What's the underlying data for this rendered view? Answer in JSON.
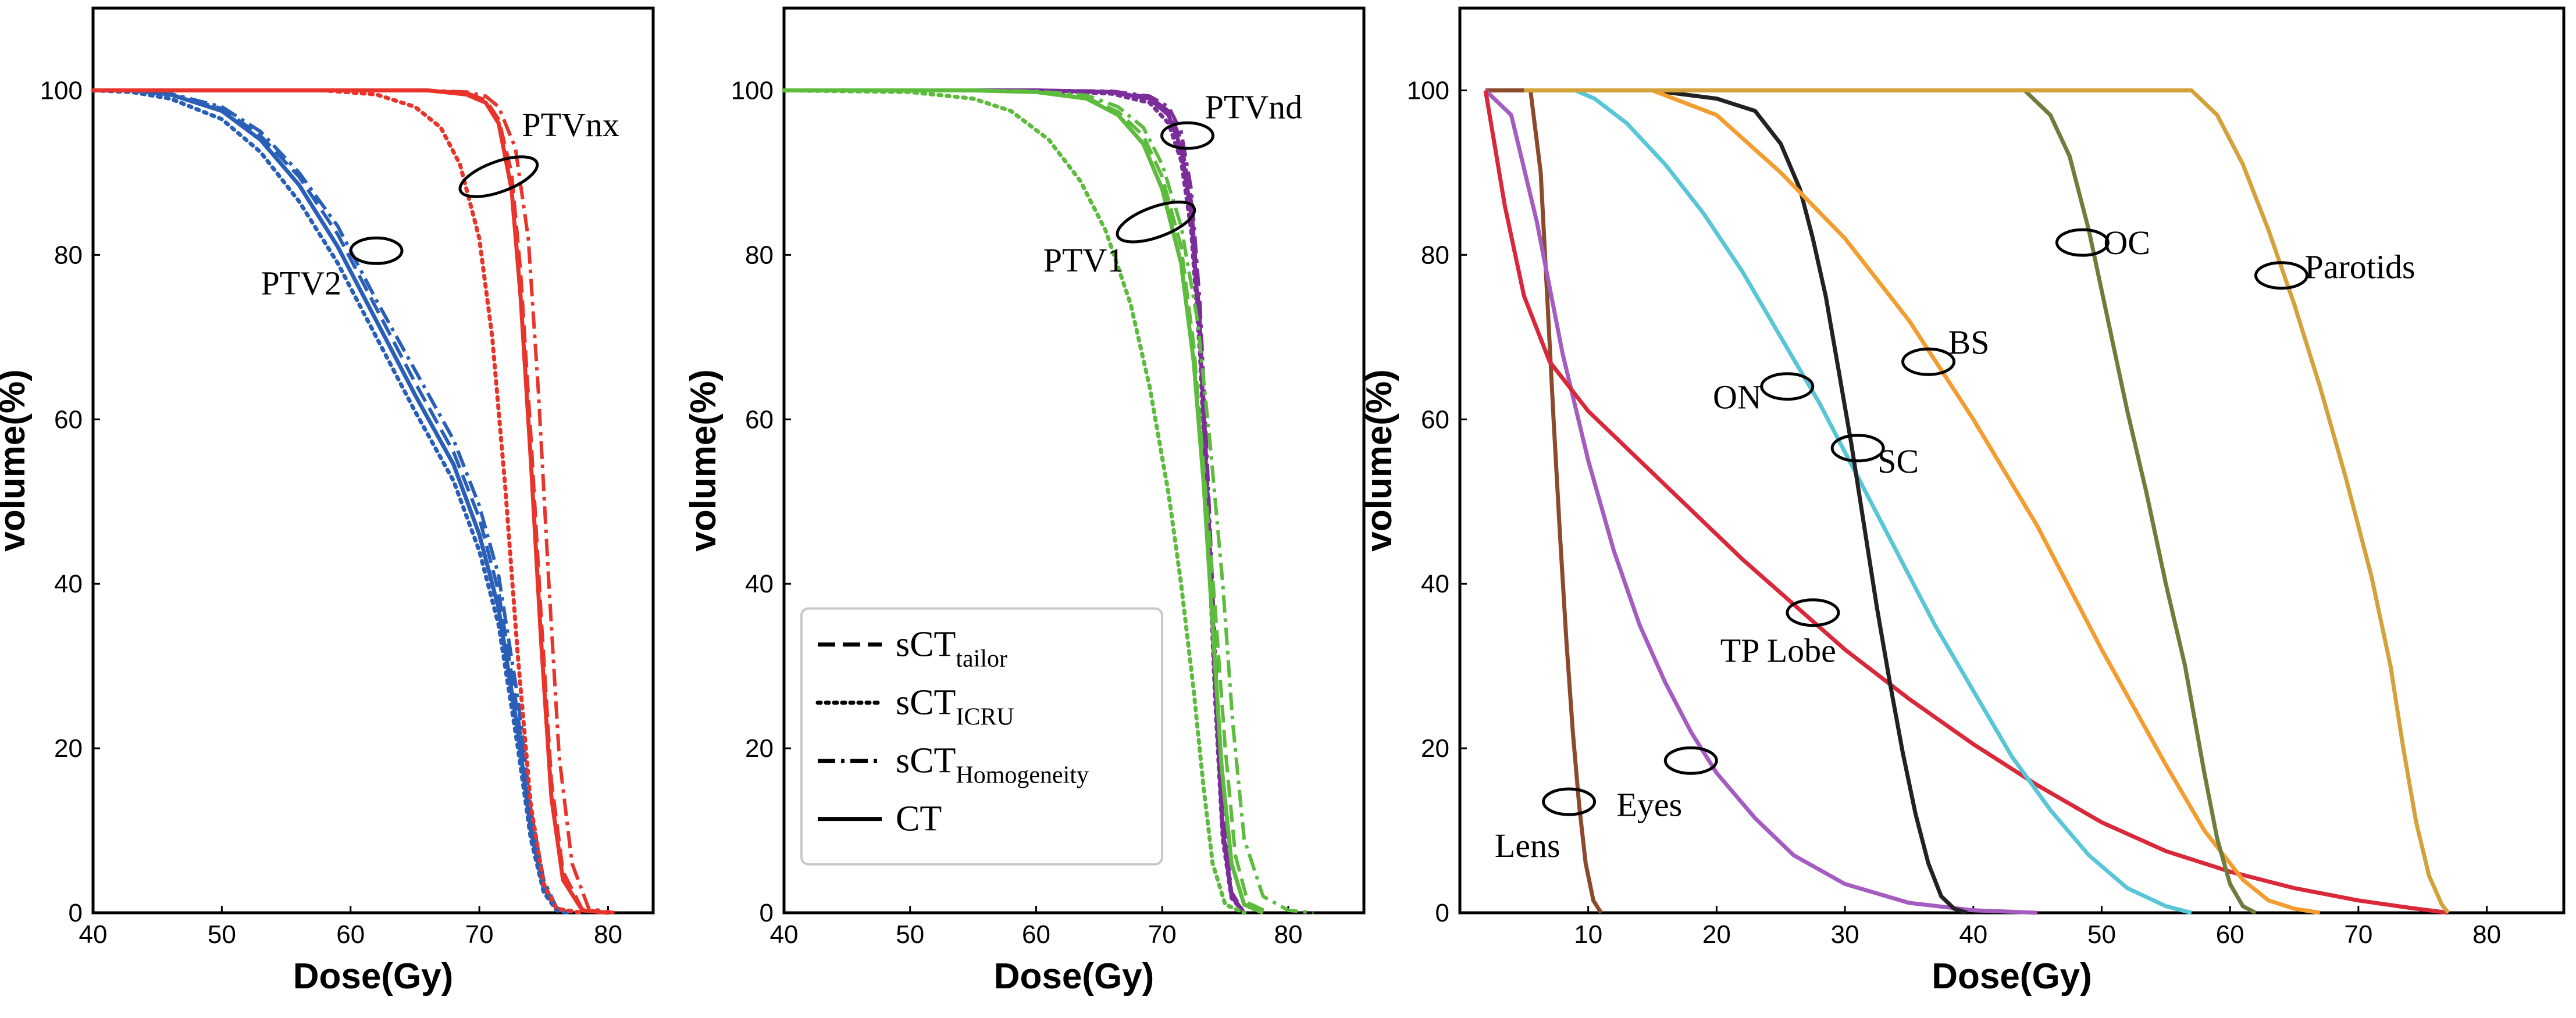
{
  "chart_data": [
    {
      "type": "line",
      "panel": "left",
      "xlabel": "Dose(Gy)",
      "ylabel": "volume(%)",
      "xlim": [
        40,
        83.5
      ],
      "ylim": [
        0,
        110
      ],
      "xticks": [
        40,
        50,
        60,
        70,
        80
      ],
      "yticks": [
        0,
        20,
        40,
        60,
        80,
        100
      ],
      "series": [
        {
          "name": "PTV2",
          "color": "#2a5fb8",
          "variant": "CT",
          "x": [
            40,
            43,
            46,
            50,
            53,
            56,
            59,
            62,
            65,
            68,
            70,
            71.5,
            73,
            74,
            75,
            76,
            77
          ],
          "y": [
            100,
            100,
            99.5,
            97.5,
            94,
            88.5,
            81,
            72,
            63,
            54.5,
            46,
            37,
            22,
            10,
            3,
            0.5,
            0
          ]
        },
        {
          "name": "PTV2",
          "color": "#2a5fb8",
          "variant": "sCT_tailor",
          "x": [
            40,
            43,
            46,
            50,
            53,
            56,
            59,
            62,
            65,
            68,
            70,
            71.5,
            73,
            74,
            75,
            76,
            77
          ],
          "y": [
            100,
            100,
            99.5,
            97.8,
            94.5,
            89.5,
            82.5,
            73.5,
            64.5,
            56,
            48,
            39,
            24,
            11,
            3.5,
            0.5,
            0
          ]
        },
        {
          "name": "PTV2",
          "color": "#2a5fb8",
          "variant": "sCT_ICRU",
          "x": [
            40,
            43,
            46,
            50,
            53,
            56,
            59,
            62,
            65,
            68,
            70,
            71.5,
            73,
            74,
            75,
            76,
            77
          ],
          "y": [
            100,
            99.8,
            99,
            96.5,
            92.5,
            86.5,
            79,
            70,
            61,
            52.5,
            44,
            35,
            20,
            9,
            2.5,
            0.3,
            0
          ]
        },
        {
          "name": "PTV2",
          "color": "#2a5fb8",
          "variant": "sCT_Homogeneity",
          "x": [
            40,
            43,
            46,
            50,
            53,
            56,
            59,
            62,
            65,
            68,
            70,
            71.5,
            73,
            74,
            75,
            76,
            77
          ],
          "y": [
            100,
            100,
            99.6,
            98,
            95,
            90,
            83.5,
            74.5,
            66,
            57.5,
            49.5,
            41,
            26,
            12.5,
            4,
            0.6,
            0
          ]
        },
        {
          "name": "PTVnx",
          "color": "#e8342b",
          "variant": "CT",
          "x": [
            40,
            60,
            66,
            69,
            70.5,
            71.5,
            72.5,
            73.2,
            74,
            74.8,
            75.6,
            76.5,
            78,
            80
          ],
          "y": [
            100,
            100,
            100,
            99.5,
            98.5,
            96,
            88,
            75,
            55,
            33,
            14,
            4,
            0.3,
            0
          ]
        },
        {
          "name": "PTVnx",
          "color": "#e8342b",
          "variant": "sCT_tailor",
          "x": [
            40,
            60,
            66,
            69,
            70.5,
            71.5,
            72.5,
            73.2,
            74,
            74.8,
            75.6,
            76.5,
            78,
            80
          ],
          "y": [
            100,
            100,
            100,
            99.7,
            98.8,
            96.5,
            90,
            78,
            58,
            36,
            16,
            5,
            0.4,
            0
          ]
        },
        {
          "name": "PTVnx",
          "color": "#e8342b",
          "variant": "sCT_ICRU",
          "x": [
            40,
            58,
            62,
            65,
            67,
            68.5,
            70,
            71,
            72,
            73,
            74,
            75,
            76,
            78
          ],
          "y": [
            100,
            100,
            99.5,
            98,
            95.5,
            91,
            82,
            70,
            52,
            31,
            13,
            3.5,
            0.5,
            0
          ]
        },
        {
          "name": "PTVnx",
          "color": "#e8342b",
          "variant": "sCT_Homogeneity",
          "x": [
            40,
            60,
            66,
            69,
            70.5,
            71.5,
            72.8,
            73.8,
            74.6,
            75.4,
            76.2,
            77.2,
            78.5,
            80.5
          ],
          "y": [
            100,
            100,
            100,
            99.8,
            99.3,
            98,
            93,
            82,
            63,
            40,
            19,
            6,
            0.5,
            0
          ]
        }
      ],
      "annotations": [
        {
          "text": "PTV2",
          "at": [
            62,
            80.5
          ]
        },
        {
          "text": "PTVnx",
          "at": [
            71.5,
            89.5
          ]
        }
      ]
    },
    {
      "type": "line",
      "panel": "middle",
      "xlabel": "Dose(Gy)",
      "ylabel": "volume(%)",
      "xlim": [
        40,
        86
      ],
      "ylim": [
        0,
        110
      ],
      "xticks": [
        40,
        50,
        60,
        70,
        80
      ],
      "yticks": [
        0,
        20,
        40,
        60,
        80,
        100
      ],
      "series": [
        {
          "name": "PTVnd",
          "color": "#7b2d9a",
          "variant": "CT",
          "x": [
            40,
            60,
            66,
            69,
            70.5,
            71.5,
            72.3,
            73,
            73.6,
            74.2,
            74.8,
            75.5,
            76.5
          ],
          "y": [
            100,
            100,
            99.8,
            99,
            97,
            93,
            85,
            70,
            50,
            28,
            10,
            2,
            0
          ]
        },
        {
          "name": "PTVnd",
          "color": "#7b2d9a",
          "variant": "sCT_tailor",
          "x": [
            40,
            60,
            66,
            69,
            70.5,
            71.5,
            72.3,
            73,
            73.6,
            74.2,
            74.8,
            75.5,
            76.5
          ],
          "y": [
            100,
            100,
            99.8,
            99.2,
            97.5,
            94,
            86.5,
            72,
            52,
            30,
            11,
            2.2,
            0
          ]
        },
        {
          "name": "PTVnd",
          "color": "#7b2d9a",
          "variant": "sCT_ICRU",
          "x": [
            40,
            60,
            66,
            69,
            70.5,
            71.5,
            72.3,
            73,
            73.6,
            74.2,
            74.8,
            75.5,
            76.5
          ],
          "y": [
            100,
            100,
            99.6,
            98.5,
            96,
            91.5,
            83,
            68,
            48,
            26,
            9,
            1.8,
            0
          ]
        },
        {
          "name": "PTVnd",
          "color": "#7b2d9a",
          "variant": "sCT_Homogeneity",
          "x": [
            40,
            60,
            66,
            69,
            70.5,
            71.5,
            72.3,
            73,
            73.6,
            74.2,
            74.8,
            75.5,
            76.5
          ],
          "y": [
            100,
            100,
            99.9,
            99.3,
            98,
            95,
            88,
            74,
            54,
            32,
            12,
            2.5,
            0
          ]
        },
        {
          "name": "PTV1",
          "color": "#5dbb3e",
          "variant": "CT",
          "x": [
            40,
            55,
            60,
            64,
            66.5,
            68.5,
            70,
            71.5,
            72.5,
            73.3,
            74,
            74.7,
            75.5,
            76.5,
            78
          ],
          "y": [
            100,
            100,
            99.8,
            99,
            97,
            93.5,
            88,
            79,
            67,
            52,
            35,
            18,
            6,
            1,
            0
          ]
        },
        {
          "name": "PTV1",
          "color": "#5dbb3e",
          "variant": "sCT_tailor",
          "x": [
            40,
            55,
            60,
            64,
            66.5,
            68.5,
            70,
            71.5,
            72.5,
            73.3,
            74.2,
            75,
            75.8,
            76.8,
            78.5
          ],
          "y": [
            100,
            100,
            99.8,
            99.1,
            97.4,
            94.5,
            89.5,
            81,
            69,
            54,
            37,
            20,
            7,
            1.2,
            0
          ]
        },
        {
          "name": "PTV1",
          "color": "#5dbb3e",
          "variant": "sCT_ICRU",
          "x": [
            40,
            50,
            55,
            58,
            61,
            63.5,
            65.5,
            67.5,
            69,
            70.5,
            71.5,
            72.5,
            73.3,
            74,
            75,
            76.5
          ],
          "y": [
            100,
            99.8,
            99,
            97.5,
            94,
            89,
            83,
            74,
            64,
            51,
            40,
            27,
            15,
            6,
            1,
            0
          ]
        },
        {
          "name": "PTV1",
          "color": "#5dbb3e",
          "variant": "sCT_Homogeneity",
          "x": [
            40,
            55,
            60,
            64,
            66.5,
            68.5,
            70,
            71.5,
            72.8,
            73.8,
            74.8,
            75.6,
            76.5,
            78,
            80,
            82
          ],
          "y": [
            100,
            100,
            99.9,
            99.4,
            98,
            95.5,
            91,
            83.5,
            72,
            57,
            40,
            23,
            9,
            2,
            0.3,
            0
          ]
        }
      ],
      "annotations": [
        {
          "text": "PTVnd",
          "at": [
            72,
            94.5
          ]
        },
        {
          "text": "PTV1",
          "at": [
            69.5,
            84
          ]
        }
      ],
      "legend": {
        "location": "lower-left",
        "entries": [
          {
            "label": "sCT",
            "sub": "tailor",
            "style": "dashed"
          },
          {
            "label": "sCT",
            "sub": "ICRU",
            "style": "dotted"
          },
          {
            "label": "sCT",
            "sub": "Homogeneity",
            "style": "dashdot"
          },
          {
            "label": "CT",
            "sub": "",
            "style": "solid"
          }
        ]
      }
    },
    {
      "type": "line",
      "panel": "right",
      "xlabel": "Dose(Gy)",
      "ylabel": "volume(%)",
      "xlim": [
        0,
        86
      ],
      "ylim": [
        0,
        110
      ],
      "xticks": [
        10,
        20,
        30,
        40,
        50,
        60,
        70,
        80
      ],
      "yticks": [
        0,
        20,
        40,
        60,
        80,
        100
      ],
      "series": [
        {
          "name": "Lens",
          "color": "#8b4a2b",
          "variant": "CT",
          "x": [
            2,
            5.5,
            6.3,
            6.8,
            7.3,
            7.8,
            8.3,
            8.8,
            9.3,
            9.8,
            10.4,
            11
          ],
          "y": [
            100,
            100,
            90,
            75,
            60,
            46,
            33,
            22,
            13,
            6,
            1.5,
            0
          ]
        },
        {
          "name": "Eyes",
          "color": "#a45cc0",
          "variant": "CT",
          "x": [
            2,
            4,
            6,
            8,
            10,
            12,
            14,
            16,
            18,
            20,
            23,
            26,
            30,
            35,
            40,
            45
          ],
          "y": [
            100,
            97,
            84,
            68,
            55,
            44,
            35,
            28,
            22,
            17,
            11.5,
            7,
            3.5,
            1.2,
            0.3,
            0
          ]
        },
        {
          "name": "TP Lobe",
          "color": "#d8283a",
          "variant": "CT",
          "x": [
            2,
            3.5,
            5,
            7,
            10,
            14,
            18,
            22,
            26,
            30,
            35,
            40,
            45,
            50,
            55,
            60,
            65,
            70,
            74,
            77
          ],
          "y": [
            100,
            86,
            75,
            67,
            61,
            55,
            49,
            43,
            37.5,
            32,
            26,
            20.5,
            15.5,
            11,
            7.5,
            5,
            3,
            1.5,
            0.6,
            0
          ]
        },
        {
          "name": "ON",
          "color": "#58c6d6",
          "variant": "CT",
          "x": [
            5,
            9,
            10.5,
            13,
            16,
            19,
            22,
            25,
            28,
            31,
            34,
            37,
            40,
            43,
            46,
            49,
            52,
            55,
            57
          ],
          "y": [
            100,
            100,
            99,
            96,
            91,
            85,
            78,
            70,
            62,
            53,
            44,
            35,
            27,
            19,
            12.5,
            7,
            3,
            0.8,
            0
          ]
        },
        {
          "name": "SC",
          "color": "#222222",
          "variant": "CT",
          "x": [
            5,
            15,
            20,
            23,
            25,
            26.5,
            27.5,
            28.5,
            29.5,
            30.5,
            31.5,
            32.5,
            33.5,
            34.5,
            35.5,
            36.5,
            37.5,
            38.5,
            39.5
          ],
          "y": [
            100,
            100,
            99,
            97.5,
            93.5,
            88,
            82,
            75,
            66,
            57,
            47,
            37,
            28,
            19.5,
            12,
            6,
            2,
            0.5,
            0
          ]
        },
        {
          "name": "BS",
          "color": "#f39c2f",
          "variant": "CT",
          "x": [
            5,
            15,
            20,
            25,
            30,
            35,
            40,
            45,
            50,
            55,
            58,
            61,
            63,
            65,
            67
          ],
          "y": [
            100,
            100,
            97,
            90,
            82,
            72,
            60,
            47,
            32,
            18,
            10,
            4,
            1.5,
            0.5,
            0
          ]
        },
        {
          "name": "OC",
          "color": "#6f7d3c",
          "variant": "CT",
          "x": [
            5,
            44,
            46,
            47.5,
            49,
            50.5,
            52,
            53.5,
            55,
            56.5,
            58,
            59,
            60,
            61,
            62
          ],
          "y": [
            100,
            100,
            97,
            92,
            83,
            72,
            61,
            51,
            40,
            30,
            17,
            9,
            3.5,
            0.8,
            0
          ]
        },
        {
          "name": "Parotids",
          "color": "#d4a23a",
          "variant": "CT",
          "x": [
            5,
            57,
            59,
            61,
            63,
            65,
            67,
            69,
            71,
            72.5,
            73.5,
            74.5,
            75.5,
            76.5,
            77
          ],
          "y": [
            100,
            100,
            97,
            91,
            83,
            74,
            64,
            53,
            41,
            30,
            20,
            11,
            4.5,
            1,
            0
          ]
        }
      ],
      "annotations": [
        {
          "text": "Lens",
          "at": [
            8.5,
            13.5
          ]
        },
        {
          "text": "Eyes",
          "at": [
            18,
            18.5
          ]
        },
        {
          "text": "TP Lobe",
          "at": [
            27.5,
            36.5
          ]
        },
        {
          "text": "ON",
          "at": [
            25.5,
            64
          ]
        },
        {
          "text": "SC",
          "at": [
            31,
            56.5
          ]
        },
        {
          "text": "BS",
          "at": [
            36.5,
            67
          ]
        },
        {
          "text": "OC",
          "at": [
            48.5,
            81.5
          ]
        },
        {
          "text": "Parotids",
          "at": [
            64,
            77.5
          ]
        }
      ]
    }
  ]
}
